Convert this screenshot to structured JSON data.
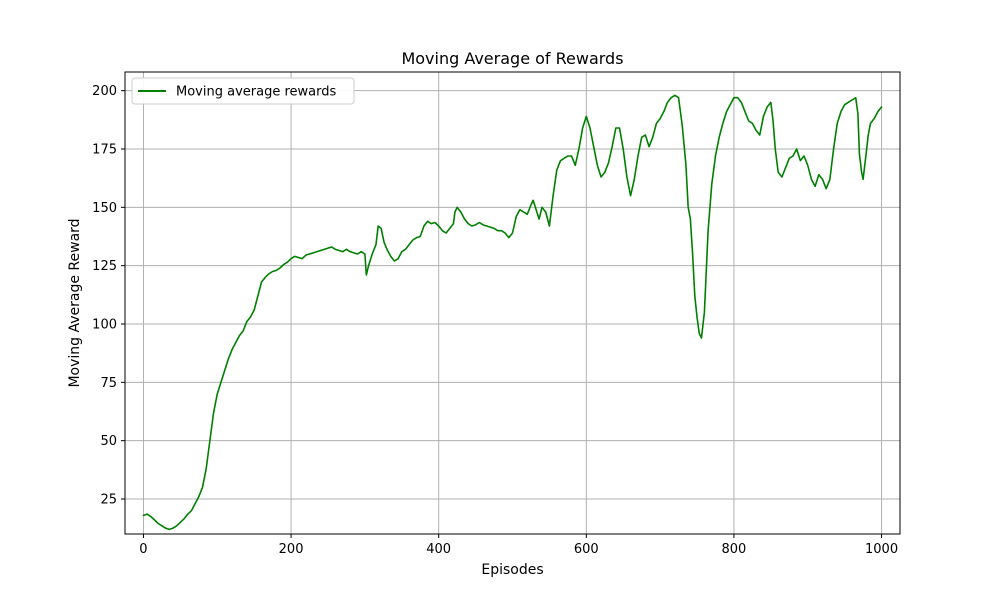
{
  "chart_data": {
    "type": "line",
    "title": "Moving Average of Rewards",
    "xlabel": "Episodes",
    "ylabel": "Moving Average Reward",
    "xlim": [
      -25,
      1025
    ],
    "ylim": [
      10,
      208
    ],
    "xticks": [
      0,
      200,
      400,
      600,
      800,
      1000
    ],
    "yticks": [
      25,
      50,
      75,
      100,
      125,
      150,
      175,
      200
    ],
    "grid": true,
    "legend_position": "top-left",
    "series": [
      {
        "name": "Moving average rewards",
        "color": "#008000",
        "points": [
          [
            0,
            18
          ],
          [
            5,
            18.5
          ],
          [
            10,
            17.5
          ],
          [
            15,
            16
          ],
          [
            20,
            14.5
          ],
          [
            25,
            13.5
          ],
          [
            30,
            12.5
          ],
          [
            35,
            12
          ],
          [
            40,
            12.5
          ],
          [
            45,
            13.5
          ],
          [
            50,
            15
          ],
          [
            55,
            16.5
          ],
          [
            60,
            18.5
          ],
          [
            65,
            20
          ],
          [
            70,
            23
          ],
          [
            75,
            26
          ],
          [
            80,
            30
          ],
          [
            85,
            38
          ],
          [
            90,
            50
          ],
          [
            95,
            62
          ],
          [
            100,
            70
          ],
          [
            105,
            75
          ],
          [
            110,
            80
          ],
          [
            115,
            85
          ],
          [
            120,
            89
          ],
          [
            125,
            92
          ],
          [
            130,
            95
          ],
          [
            135,
            97
          ],
          [
            140,
            101
          ],
          [
            145,
            103
          ],
          [
            150,
            106
          ],
          [
            155,
            112
          ],
          [
            160,
            118
          ],
          [
            165,
            120
          ],
          [
            170,
            121.5
          ],
          [
            175,
            122.5
          ],
          [
            180,
            123
          ],
          [
            185,
            124
          ],
          [
            190,
            125.5
          ],
          [
            195,
            126.5
          ],
          [
            200,
            128
          ],
          [
            205,
            129
          ],
          [
            210,
            128.5
          ],
          [
            215,
            128
          ],
          [
            220,
            129.5
          ],
          [
            225,
            130
          ],
          [
            230,
            130.5
          ],
          [
            235,
            131
          ],
          [
            240,
            131.5
          ],
          [
            245,
            132
          ],
          [
            250,
            132.5
          ],
          [
            255,
            133
          ],
          [
            260,
            132
          ],
          [
            265,
            131.5
          ],
          [
            270,
            131
          ],
          [
            275,
            132
          ],
          [
            280,
            131
          ],
          [
            285,
            130.5
          ],
          [
            290,
            130
          ],
          [
            295,
            131
          ],
          [
            300,
            130
          ],
          [
            302,
            121
          ],
          [
            305,
            125
          ],
          [
            310,
            130
          ],
          [
            315,
            134
          ],
          [
            318,
            142
          ],
          [
            322,
            141
          ],
          [
            326,
            135
          ],
          [
            330,
            132
          ],
          [
            335,
            129
          ],
          [
            340,
            127
          ],
          [
            345,
            128
          ],
          [
            350,
            131
          ],
          [
            355,
            132
          ],
          [
            360,
            134
          ],
          [
            365,
            136
          ],
          [
            370,
            137
          ],
          [
            375,
            137.5
          ],
          [
            380,
            142
          ],
          [
            385,
            144
          ],
          [
            390,
            143
          ],
          [
            395,
            143.5
          ],
          [
            400,
            142
          ],
          [
            405,
            140
          ],
          [
            410,
            139
          ],
          [
            415,
            141
          ],
          [
            420,
            143
          ],
          [
            422,
            148
          ],
          [
            425,
            150
          ],
          [
            430,
            148
          ],
          [
            435,
            145
          ],
          [
            440,
            143
          ],
          [
            445,
            142
          ],
          [
            450,
            142.5
          ],
          [
            455,
            143.5
          ],
          [
            460,
            142.5
          ],
          [
            465,
            142
          ],
          [
            470,
            141.5
          ],
          [
            475,
            141
          ],
          [
            480,
            140
          ],
          [
            485,
            140
          ],
          [
            490,
            139
          ],
          [
            495,
            137
          ],
          [
            500,
            139
          ],
          [
            505,
            146
          ],
          [
            510,
            149
          ],
          [
            515,
            148
          ],
          [
            520,
            147
          ],
          [
            525,
            151
          ],
          [
            528,
            153
          ],
          [
            532,
            149
          ],
          [
            536,
            145
          ],
          [
            540,
            150
          ],
          [
            545,
            148
          ],
          [
            550,
            142
          ],
          [
            555,
            155
          ],
          [
            560,
            166
          ],
          [
            565,
            170
          ],
          [
            570,
            171
          ],
          [
            575,
            172
          ],
          [
            580,
            172
          ],
          [
            585,
            168
          ],
          [
            590,
            175
          ],
          [
            595,
            184
          ],
          [
            600,
            189
          ],
          [
            605,
            184
          ],
          [
            610,
            176
          ],
          [
            615,
            168
          ],
          [
            620,
            163
          ],
          [
            625,
            165
          ],
          [
            630,
            169
          ],
          [
            635,
            176
          ],
          [
            640,
            184
          ],
          [
            645,
            184
          ],
          [
            650,
            175
          ],
          [
            655,
            163
          ],
          [
            660,
            155
          ],
          [
            665,
            162
          ],
          [
            670,
            172
          ],
          [
            675,
            180
          ],
          [
            680,
            181
          ],
          [
            685,
            176
          ],
          [
            690,
            180
          ],
          [
            695,
            186
          ],
          [
            700,
            188
          ],
          [
            705,
            191
          ],
          [
            710,
            195
          ],
          [
            715,
            197
          ],
          [
            720,
            198
          ],
          [
            725,
            197
          ],
          [
            730,
            185
          ],
          [
            735,
            168
          ],
          [
            738,
            150
          ],
          [
            741,
            145
          ],
          [
            744,
            130
          ],
          [
            747,
            112
          ],
          [
            750,
            103
          ],
          [
            753,
            96
          ],
          [
            756,
            94
          ],
          [
            760,
            105
          ],
          [
            765,
            140
          ],
          [
            770,
            160
          ],
          [
            775,
            172
          ],
          [
            780,
            180
          ],
          [
            785,
            186
          ],
          [
            790,
            191
          ],
          [
            795,
            194
          ],
          [
            800,
            197
          ],
          [
            805,
            197
          ],
          [
            810,
            195
          ],
          [
            815,
            191
          ],
          [
            820,
            187
          ],
          [
            825,
            186
          ],
          [
            830,
            183
          ],
          [
            835,
            181
          ],
          [
            840,
            189
          ],
          [
            845,
            193
          ],
          [
            850,
            195
          ],
          [
            853,
            187
          ],
          [
            856,
            175
          ],
          [
            860,
            165
          ],
          [
            865,
            163
          ],
          [
            870,
            167
          ],
          [
            875,
            171
          ],
          [
            880,
            172
          ],
          [
            885,
            175
          ],
          [
            890,
            170
          ],
          [
            895,
            172
          ],
          [
            900,
            168
          ],
          [
            905,
            162
          ],
          [
            910,
            159
          ],
          [
            915,
            164
          ],
          [
            920,
            162
          ],
          [
            925,
            158
          ],
          [
            930,
            162
          ],
          [
            935,
            175
          ],
          [
            940,
            186
          ],
          [
            945,
            191
          ],
          [
            950,
            194
          ],
          [
            955,
            195
          ],
          [
            960,
            196
          ],
          [
            965,
            197
          ],
          [
            968,
            190
          ],
          [
            970,
            173
          ],
          [
            973,
            165
          ],
          [
            975,
            162
          ],
          [
            978,
            170
          ],
          [
            982,
            181
          ],
          [
            985,
            186
          ],
          [
            990,
            188
          ],
          [
            995,
            191
          ],
          [
            1000,
            193
          ]
        ]
      }
    ]
  }
}
